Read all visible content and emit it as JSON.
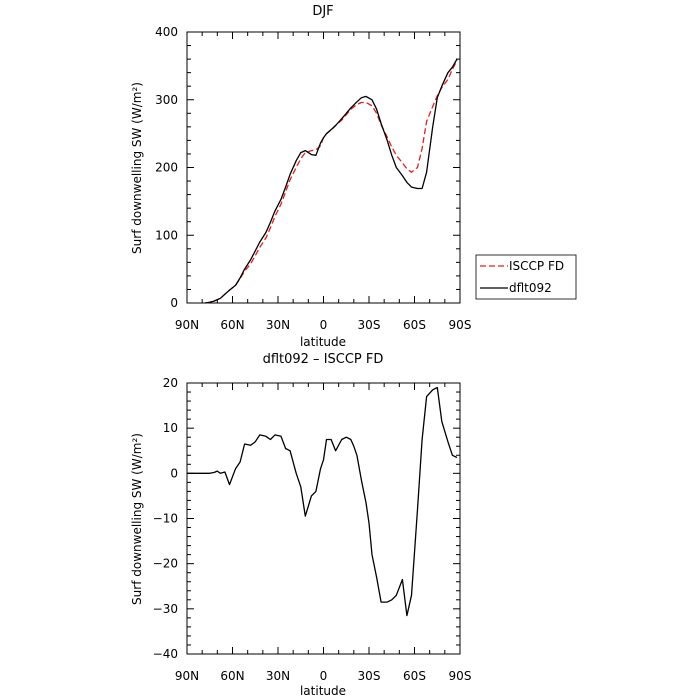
{
  "chart_data": [
    {
      "type": "line",
      "title": "DJF",
      "xlabel": "latitude",
      "ylabel": "Surf downwelling SW (W/m²)",
      "xlim": [
        90,
        -90
      ],
      "ylim": [
        0,
        400
      ],
      "xticks": [
        90,
        60,
        30,
        0,
        -30,
        -60,
        -90
      ],
      "xtick_labels": [
        "90N",
        "60N",
        "30N",
        "0",
        "30S",
        "60S",
        "90S"
      ],
      "yticks": [
        0,
        100,
        200,
        300,
        400
      ],
      "ytick_labels": [
        "0",
        "100",
        "200",
        "300",
        "400"
      ],
      "legend_position": "right",
      "series": [
        {
          "name": "ISCCP FD",
          "color": "#e0201c",
          "dash": "dashed",
          "x": [
            78,
            75,
            72,
            68,
            65,
            62,
            58,
            55,
            52,
            48,
            45,
            42,
            38,
            35,
            32,
            28,
            25,
            22,
            18,
            15,
            12,
            8,
            5,
            2,
            0,
            -2,
            -5,
            -8,
            -12,
            -15,
            -18,
            -22,
            -25,
            -28,
            -32,
            -35,
            -38,
            -42,
            -45,
            -48,
            -52,
            -55,
            -58,
            -62,
            -65,
            -68,
            -72,
            -75,
            -78,
            -82,
            -85,
            -88
          ],
          "y": [
            0,
            1,
            3,
            7,
            13,
            19,
            26,
            36,
            47,
            58,
            70,
            82,
            96,
            111,
            128,
            146,
            164,
            182,
            200,
            213,
            222,
            225,
            226,
            232,
            244,
            250,
            255,
            262,
            270,
            278,
            286,
            293,
            296,
            296,
            291,
            280,
            263,
            245,
            230,
            218,
            207,
            198,
            193,
            200,
            228,
            268,
            290,
            306,
            318,
            330,
            345,
            358
          ]
        },
        {
          "name": "dflt092",
          "color": "#000000",
          "dash": "solid",
          "x": [
            78,
            75,
            72,
            68,
            65,
            62,
            58,
            55,
            52,
            48,
            45,
            42,
            38,
            35,
            32,
            28,
            25,
            22,
            18,
            15,
            12,
            8,
            5,
            2,
            0,
            -2,
            -5,
            -8,
            -12,
            -15,
            -18,
            -22,
            -25,
            -28,
            -32,
            -35,
            -38,
            -42,
            -45,
            -48,
            -52,
            -55,
            -58,
            -62,
            -65,
            -68,
            -72,
            -75,
            -78,
            -82,
            -85,
            -88
          ],
          "y": [
            0,
            1,
            3,
            7,
            13,
            19,
            26,
            37,
            50,
            64,
            77,
            90,
            104,
            119,
            136,
            153,
            171,
            190,
            210,
            222,
            225,
            219,
            218,
            236,
            244,
            250,
            256,
            262,
            272,
            280,
            288,
            297,
            303,
            305,
            300,
            286,
            265,
            240,
            218,
            200,
            188,
            178,
            171,
            169,
            169,
            193,
            260,
            303,
            320,
            340,
            348,
            360
          ]
        }
      ]
    },
    {
      "type": "line",
      "title": "dflt092 – ISCCP FD",
      "xlabel": "latitude",
      "ylabel": "Surf downwelling SW (W/m²)",
      "xlim": [
        90,
        -90
      ],
      "ylim": [
        -40,
        20
      ],
      "xticks": [
        90,
        60,
        30,
        0,
        -30,
        -60,
        -90
      ],
      "xtick_labels": [
        "90N",
        "60N",
        "30N",
        "0",
        "30S",
        "60S",
        "90S"
      ],
      "yticks": [
        -40,
        -30,
        -20,
        -10,
        0,
        10,
        20
      ],
      "ytick_labels": [
        "−40",
        "−30",
        "−20",
        "−10",
        "0",
        "10",
        "20"
      ],
      "series": [
        {
          "name": "",
          "color": "#000000",
          "dash": "solid",
          "x": [
            90,
            85,
            80,
            75,
            72,
            70,
            68,
            65,
            62,
            58,
            55,
            52,
            48,
            45,
            42,
            38,
            35,
            32,
            28,
            25,
            22,
            18,
            15,
            12,
            8,
            5,
            2,
            0,
            -2,
            -5,
            -8,
            -12,
            -15,
            -18,
            -20,
            -22,
            -25,
            -28,
            -30,
            -32,
            -35,
            -38,
            -42,
            -45,
            -48,
            -52,
            -55,
            -58,
            -62,
            -65,
            -68,
            -72,
            -75,
            -78,
            -82,
            -85,
            -88
          ],
          "y": [
            0,
            0,
            0,
            0,
            0.2,
            0.5,
            0,
            0.3,
            -2.5,
            1,
            2.5,
            6.5,
            6.2,
            7,
            8.5,
            8.2,
            7.5,
            8.5,
            8.2,
            5.5,
            5,
            0,
            -3,
            -9.5,
            -5,
            -4,
            1,
            3,
            7.5,
            7.5,
            5,
            7.5,
            8,
            7.5,
            6,
            4,
            -1.5,
            -6.5,
            -11,
            -18,
            -23,
            -28.5,
            -28.5,
            -28,
            -27,
            -23.5,
            -31.5,
            -27,
            -8,
            7.5,
            17,
            18.5,
            19,
            11.5,
            7,
            4,
            3.5
          ]
        }
      ]
    }
  ],
  "legend": {
    "items": [
      {
        "label": "ISCCP FD",
        "color": "#e0201c",
        "dash": "dashed"
      },
      {
        "label": "dflt092",
        "color": "#000000",
        "dash": "solid"
      }
    ]
  }
}
